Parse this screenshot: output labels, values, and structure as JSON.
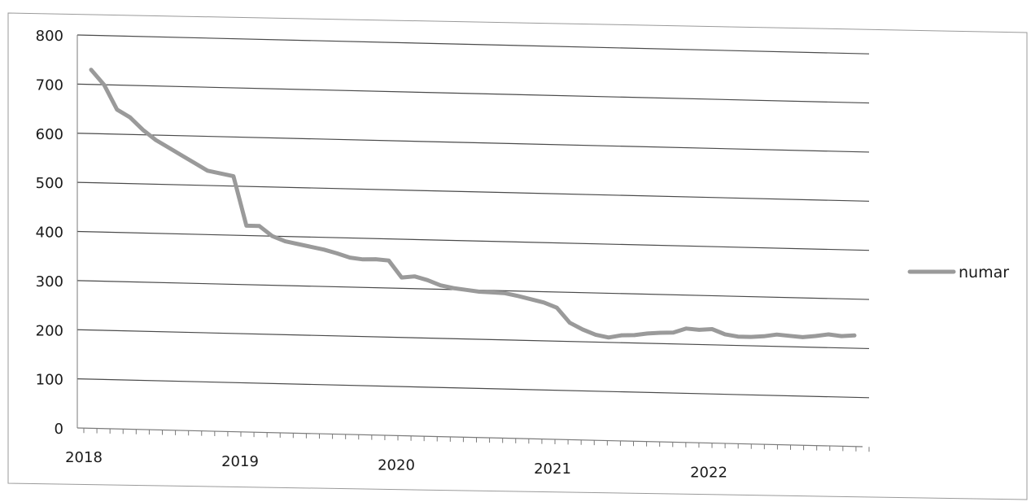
{
  "chart_data": {
    "type": "line",
    "title": "",
    "xlabel": "",
    "ylabel": "",
    "ylim": [
      0,
      800
    ],
    "y_ticks": [
      0,
      100,
      200,
      300,
      400,
      500,
      600,
      700,
      800
    ],
    "x_tick_labels": [
      "2018",
      "2019",
      "2020",
      "2021",
      "2022"
    ],
    "grid": "horizontal",
    "legend_position": "right",
    "colors": {
      "series": "#9a9a9a",
      "grid": "#4a4a4a",
      "axis": "#7a7a7a",
      "text": "#1a1a1a",
      "border": "#9a9a9a"
    },
    "x": [
      "2018-01",
      "2018-02",
      "2018-03",
      "2018-04",
      "2018-05",
      "2018-06",
      "2018-07",
      "2018-08",
      "2018-09",
      "2018-10",
      "2018-11",
      "2018-12",
      "2019-01",
      "2019-02",
      "2019-03",
      "2019-04",
      "2019-05",
      "2019-06",
      "2019-07",
      "2019-08",
      "2019-09",
      "2019-10",
      "2019-11",
      "2019-12",
      "2020-01",
      "2020-02",
      "2020-03",
      "2020-04",
      "2020-05",
      "2020-06",
      "2020-07",
      "2020-08",
      "2020-09",
      "2020-10",
      "2020-11",
      "2020-12",
      "2021-01",
      "2021-02",
      "2021-03",
      "2021-04",
      "2021-05",
      "2021-06",
      "2021-07",
      "2021-08",
      "2021-09",
      "2021-10",
      "2021-11",
      "2021-12",
      "2022-01",
      "2022-02",
      "2022-03",
      "2022-04",
      "2022-05",
      "2022-06",
      "2022-07",
      "2022-08",
      "2022-09",
      "2022-10",
      "2022-11",
      "2022-12"
    ],
    "series": [
      {
        "name": "numar",
        "values": [
          730,
          700,
          650,
          635,
          610,
          590,
          575,
          560,
          545,
          530,
          525,
          520,
          420,
          420,
          400,
          390,
          385,
          380,
          375,
          368,
          360,
          357,
          358,
          356,
          322,
          325,
          318,
          308,
          303,
          300,
          297,
          296,
          295,
          290,
          284,
          278,
          268,
          238,
          225,
          215,
          210,
          215,
          216,
          220,
          222,
          223,
          232,
          230,
          232,
          222,
          218,
          218,
          220,
          224,
          222,
          220,
          223,
          227,
          224,
          226
        ]
      }
    ]
  }
}
